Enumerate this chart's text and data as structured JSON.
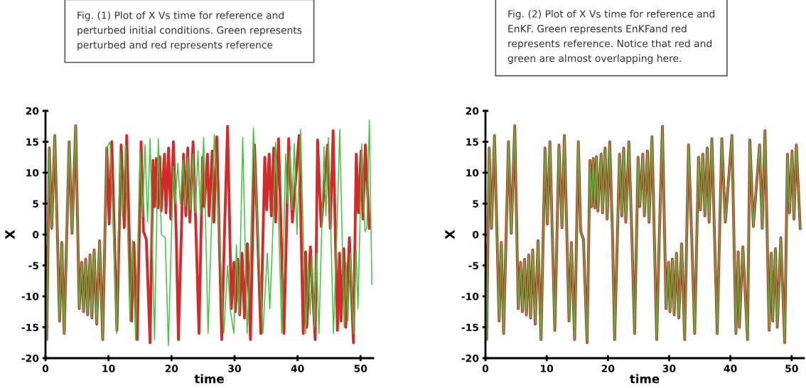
{
  "chart_data": [
    {
      "type": "line",
      "xlabel": "time",
      "ylabel": "X",
      "xlim": [
        0,
        52
      ],
      "ylim": [
        -20,
        20
      ],
      "xticks": [
        0,
        10,
        20,
        30,
        40,
        50
      ],
      "yticks": [
        -20,
        -15,
        -10,
        -5,
        0,
        5,
        10,
        15,
        20
      ],
      "annotations": [
        "Fig. (1) Plot of X Vs time for reference and\nperturbed initial conditions. Green represents\nperturbed and red represents reference"
      ],
      "series": [
        {
          "color": "#d62a2a",
          "x": [
            0,
            0.2,
            0.61,
            0.99,
            1.48,
            2.24,
            2.59,
            2.97,
            3.76,
            4.22,
            4.79,
            5.36,
            5.74,
            6.04,
            6.38,
            6.69,
            7.07,
            7.37,
            7.72,
            8.13,
            8.59,
            9.08,
            9.73,
            10.11,
            10.53,
            11.33,
            12.01,
            12.5,
            12.89,
            13.65,
            14.03,
            14.56,
            15.17,
            15.55,
            16.0,
            16.6,
            17.07,
            17.33,
            17.6,
            17.86,
            18.13,
            18.36,
            18.89,
            19.12,
            19.54,
            19.88,
            20.3,
            20.75,
            21.1,
            21.9,
            22.28,
            22.58,
            22.92,
            23.42,
            23.9,
            24.36,
            24.93,
            25.2,
            25.7,
            25.96,
            26.46,
            26.72,
            27.2,
            27.97,
            28.4,
            28.9,
            29.5,
            29.9,
            30.14,
            30.52,
            30.82,
            31.2,
            31.58,
            32.04,
            32.53,
            33.17,
            33.67,
            34.17,
            34.8,
            35.1,
            35.5,
            35.84,
            36.22,
            36.52,
            36.98,
            37.85,
            38.6,
            39.18,
            40.25,
            40.9,
            41.28,
            41.47,
            42.04,
            42.8,
            43.18,
            43.75,
            44.77,
            45.2,
            45.65,
            46.33,
            46.67,
            46.9,
            47.36,
            47.66,
            48.23,
            48.87,
            49.32,
            49.66,
            50.08,
            50.39,
            50.77,
            51.4
          ],
          "values": [
            -2,
            -17,
            14,
            1,
            16,
            -14,
            -1.3,
            -16,
            15,
            0.2,
            17.6,
            -12,
            -4.5,
            -12.5,
            -4,
            -13,
            -3.3,
            -13.5,
            -2.5,
            -14.5,
            -1,
            -17,
            14,
            1.7,
            15,
            -15.5,
            14.5,
            1.1,
            16,
            -14,
            -1.3,
            -17,
            15,
            0.5,
            -0.8,
            -17.5,
            12,
            4.5,
            12.3,
            4.3,
            12.6,
            3.8,
            13,
            3.5,
            14,
            2.5,
            15,
            0,
            -17,
            13,
            3,
            14,
            2,
            15,
            0,
            -16,
            12.5,
            4.5,
            13,
            3,
            13.5,
            2,
            15.8,
            -17,
            0,
            17.5,
            -12,
            -4.5,
            -12.5,
            -4,
            -13,
            -3,
            -13.5,
            -1.5,
            -17,
            14.5,
            0,
            -16,
            12.5,
            4,
            13,
            3,
            14,
            2,
            15.5,
            -16,
            15.5,
            2,
            16,
            -16,
            -2.8,
            -15,
            -2,
            -17,
            15.3,
            1.3,
            14.5,
            1,
            16.8,
            -15.5,
            -3,
            -14,
            -2.3,
            -15,
            -0.5,
            -17.5,
            13,
            3.5,
            13.5,
            2.5,
            14.5,
            1
          ]
        },
        {
          "color": "#3ec63e",
          "x": [
            0,
            0.2,
            0.61,
            0.99,
            1.48,
            2.24,
            2.59,
            2.97,
            3.76,
            4.22,
            4.79,
            5.36,
            5.74,
            6.04,
            6.38,
            6.69,
            7.07,
            7.37,
            7.72,
            8.13,
            8.59,
            9.08,
            9.73,
            10.25,
            10.7,
            11.3,
            11.8,
            12.2,
            12.7,
            13.4,
            13.8,
            14.3,
            15.0,
            15.4,
            15.8,
            16.2,
            16.6,
            17.3,
            17.9,
            18.4,
            19.0,
            19.5,
            20.3,
            20.6,
            21.0,
            21.4,
            21.8,
            22.2,
            22.6,
            23.0,
            23.4,
            23.8,
            24.2,
            24.6,
            25.1,
            25.8,
            26.8,
            27.5,
            28.3,
            28.9,
            29.3,
            29.9,
            30.3,
            30.7,
            31.3,
            32.0,
            32.5,
            33.0,
            33.7,
            34.5,
            35.2,
            35.6,
            36.0,
            36.5,
            37.0,
            37.5,
            38.1,
            38.4,
            38.8,
            39.1,
            39.5,
            39.9,
            40.5,
            41.3,
            41.7,
            42.0,
            42.3,
            42.7,
            43.0,
            43.4,
            44.2,
            44.5,
            44.9,
            45.7,
            46.2,
            46.7,
            47.4,
            47.7,
            48.0,
            48.4,
            48.9,
            49.3,
            49.6,
            50.2,
            50.7,
            51.0,
            51.4,
            51.8
          ],
          "values": [
            -2,
            -17,
            14,
            1,
            16,
            -14,
            -1.3,
            -16,
            15,
            0.2,
            17.6,
            -12,
            -4.5,
            -12.5,
            -4,
            -13,
            -3.3,
            -13.5,
            -2.5,
            -14.5,
            -1,
            -17,
            14,
            15,
            3,
            -16,
            13.5,
            3,
            14.5,
            -14,
            -1,
            -17,
            13.5,
            3,
            14.5,
            2,
            15.5,
            -17,
            15.5,
            0,
            -0.5,
            -18,
            11,
            5,
            11.5,
            5,
            12,
            4.5,
            12.5,
            4,
            13,
            3.5,
            13.5,
            3,
            15.7,
            -16,
            16.2,
            2,
            -16,
            -5,
            -12,
            -16,
            -1.7,
            -13,
            15.7,
            -16,
            -4,
            17.2,
            0,
            -16,
            -3,
            -12,
            -2,
            14.9,
            2,
            -16,
            13,
            5,
            13.6,
            4,
            14.7,
            0,
            17,
            -16,
            -4.5,
            -13,
            -3.5,
            -15,
            -3,
            -16,
            14.2,
            3,
            15.7,
            -16,
            -1,
            17,
            -15,
            -4.5,
            -14,
            -3,
            -16,
            -2.5,
            -12,
            14.7,
            0.5,
            1,
            18.5,
            -8.1
          ]
        }
      ]
    },
    {
      "type": "line",
      "xlabel": "time",
      "ylabel": "X",
      "xlim": [
        0,
        52
      ],
      "ylim": [
        -20,
        20
      ],
      "xticks": [
        0,
        10,
        20,
        30,
        40,
        50
      ],
      "yticks": [
        -20,
        -15,
        -10,
        -5,
        0,
        5,
        10,
        15,
        20
      ],
      "annotations": [
        "Fig. (2) Plot of X Vs time for reference and\nEnKF. Green represents EnKFand red\nrepresents reference. Notice that red and\ngreen are almost overlapping here."
      ],
      "series": [
        {
          "color": "#d62a2a",
          "x": [
            0,
            0.2,
            0.61,
            0.99,
            1.48,
            2.24,
            2.59,
            2.97,
            3.76,
            4.22,
            4.79,
            5.36,
            5.74,
            6.04,
            6.38,
            6.69,
            7.07,
            7.37,
            7.72,
            8.13,
            8.59,
            9.08,
            9.73,
            10.11,
            10.53,
            11.33,
            12.01,
            12.5,
            12.89,
            13.65,
            14.03,
            14.56,
            15.17,
            15.55,
            16.0,
            16.6,
            17.07,
            17.33,
            17.6,
            17.86,
            18.13,
            18.36,
            18.89,
            19.12,
            19.54,
            19.88,
            20.3,
            20.75,
            21.1,
            21.9,
            22.28,
            22.58,
            22.92,
            23.42,
            23.9,
            24.36,
            24.93,
            25.2,
            25.7,
            25.96,
            26.46,
            26.72,
            27.2,
            27.97,
            28.4,
            28.9,
            29.5,
            29.9,
            30.14,
            30.52,
            30.82,
            31.2,
            31.58,
            32.04,
            32.53,
            33.17,
            33.67,
            34.17,
            34.8,
            35.1,
            35.5,
            35.84,
            36.22,
            36.52,
            36.98,
            37.85,
            38.6,
            39.18,
            40.25,
            40.9,
            41.28,
            41.47,
            42.04,
            42.8,
            43.18,
            43.75,
            44.77,
            45.2,
            45.65,
            46.33,
            46.67,
            46.9,
            47.36,
            47.66,
            48.23,
            48.87,
            49.32,
            49.66,
            50.08,
            50.39,
            50.77,
            51.4
          ],
          "values": [
            -2,
            -17,
            14,
            1,
            16,
            -14,
            -1.3,
            -16,
            15,
            0.2,
            17.6,
            -12,
            -4.5,
            -12.5,
            -4,
            -13,
            -3.3,
            -13.5,
            -2.5,
            -14.5,
            -1,
            -17,
            14,
            1.7,
            15,
            -15.5,
            14.5,
            1.1,
            16,
            -14,
            -1.3,
            -17,
            15,
            0.5,
            -0.8,
            -17.5,
            12,
            4.5,
            12.3,
            4.3,
            12.6,
            3.8,
            13,
            3.5,
            14,
            2.5,
            15,
            0,
            -17,
            13,
            3,
            14,
            2,
            15,
            0,
            -16,
            12.5,
            4.5,
            13,
            3,
            13.5,
            2,
            15.8,
            -17,
            0,
            17.5,
            -12,
            -4.5,
            -12.5,
            -4,
            -13,
            -3,
            -13.5,
            -1.5,
            -17,
            14.5,
            0,
            -16,
            12.5,
            4,
            13,
            3,
            14,
            2,
            15.5,
            -16,
            15.5,
            2,
            16,
            -16,
            -2.8,
            -15,
            -2,
            -17,
            15.3,
            1.3,
            14.5,
            1,
            16.8,
            -15.5,
            -3,
            -14,
            -2.3,
            -15,
            -0.5,
            -17.5,
            13,
            3.5,
            13.5,
            2.5,
            14.5,
            1
          ]
        },
        {
          "color": "#3ec63e",
          "x": [
            0,
            0.2,
            0.61,
            0.99,
            1.48,
            2.24,
            2.59,
            2.97,
            3.76,
            4.22,
            4.79,
            5.36,
            5.74,
            6.04,
            6.38,
            6.69,
            7.07,
            7.37,
            7.72,
            8.13,
            8.59,
            9.08,
            9.73,
            10.11,
            10.53,
            11.33,
            12.01,
            12.5,
            12.89,
            13.65,
            14.03,
            14.56,
            15.17,
            15.55,
            16.0,
            16.6,
            17.07,
            17.33,
            17.6,
            17.86,
            18.13,
            18.36,
            18.89,
            19.12,
            19.54,
            19.88,
            20.3,
            20.75,
            21.1,
            21.9,
            22.28,
            22.58,
            22.92,
            23.42,
            23.9,
            24.36,
            24.93,
            25.2,
            25.7,
            25.96,
            26.46,
            26.72,
            27.2,
            27.97,
            28.4,
            28.9,
            29.5,
            29.9,
            30.14,
            30.52,
            30.82,
            31.2,
            31.58,
            32.04,
            32.53,
            33.17,
            33.67,
            34.17,
            34.8,
            35.1,
            35.5,
            35.84,
            36.22,
            36.52,
            36.98,
            37.85,
            38.6,
            39.18,
            40.25,
            40.9,
            41.28,
            41.47,
            42.04,
            42.8,
            43.18,
            43.75,
            44.77,
            45.2,
            45.65,
            46.33,
            46.67,
            46.9,
            47.36,
            47.66,
            48.23,
            48.87,
            49.32,
            49.66,
            50.08,
            50.39,
            50.77,
            51.4
          ],
          "values": [
            -2,
            -17,
            14,
            1,
            16,
            -14,
            -1.3,
            -16,
            15,
            0.2,
            17.6,
            -12,
            -4.5,
            -12.5,
            -4,
            -13,
            -3.3,
            -13.5,
            -2.5,
            -14.5,
            -1,
            -17,
            14,
            1.7,
            15,
            -15.5,
            14.5,
            1.1,
            16,
            -14,
            -1.3,
            -17,
            15,
            0.5,
            -0.8,
            -17.5,
            12,
            4.5,
            12.3,
            4.3,
            12.6,
            3.8,
            13,
            3.5,
            14,
            2.5,
            15,
            0,
            -17,
            13,
            3,
            14,
            2,
            15,
            0,
            -16,
            12.5,
            4.5,
            13,
            3,
            13.5,
            2,
            15.8,
            -17,
            0,
            17.5,
            -12,
            -4.5,
            -12.5,
            -4,
            -13,
            -3,
            -13.5,
            -1.5,
            -17,
            14.5,
            0,
            -16,
            12.5,
            4,
            13,
            3,
            14,
            2,
            15.5,
            -16,
            15.5,
            2,
            16,
            -16,
            -2.8,
            -15,
            -2,
            -17,
            15.3,
            1.3,
            14.5,
            1,
            16.8,
            -15.5,
            -3,
            -14,
            -2.3,
            -15,
            -0.5,
            -17.5,
            13,
            3.5,
            13.5,
            2.5,
            14.5,
            1
          ]
        }
      ]
    }
  ]
}
